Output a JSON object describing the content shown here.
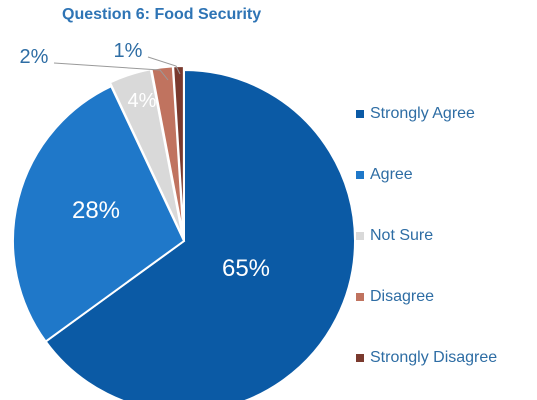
{
  "chart_data": {
    "type": "pie",
    "title": "Question 6: Food Security",
    "categories": [
      "Strongly Agree",
      "Agree",
      "Not Sure",
      "Disagree",
      "Strongly Disagree"
    ],
    "values": [
      65,
      28,
      4,
      2,
      1
    ],
    "labels": [
      "65%",
      "28%",
      "4%",
      "2%",
      "1%"
    ],
    "colors": [
      "#0b5aa5",
      "#1f78c9",
      "#d9d9d9",
      "#c0735f",
      "#7a3a2e"
    ],
    "label_colors": [
      "#ffffff",
      "#ffffff",
      "#ffffff",
      "#2e6da4",
      "#2e6da4"
    ],
    "legend_position": "right"
  }
}
